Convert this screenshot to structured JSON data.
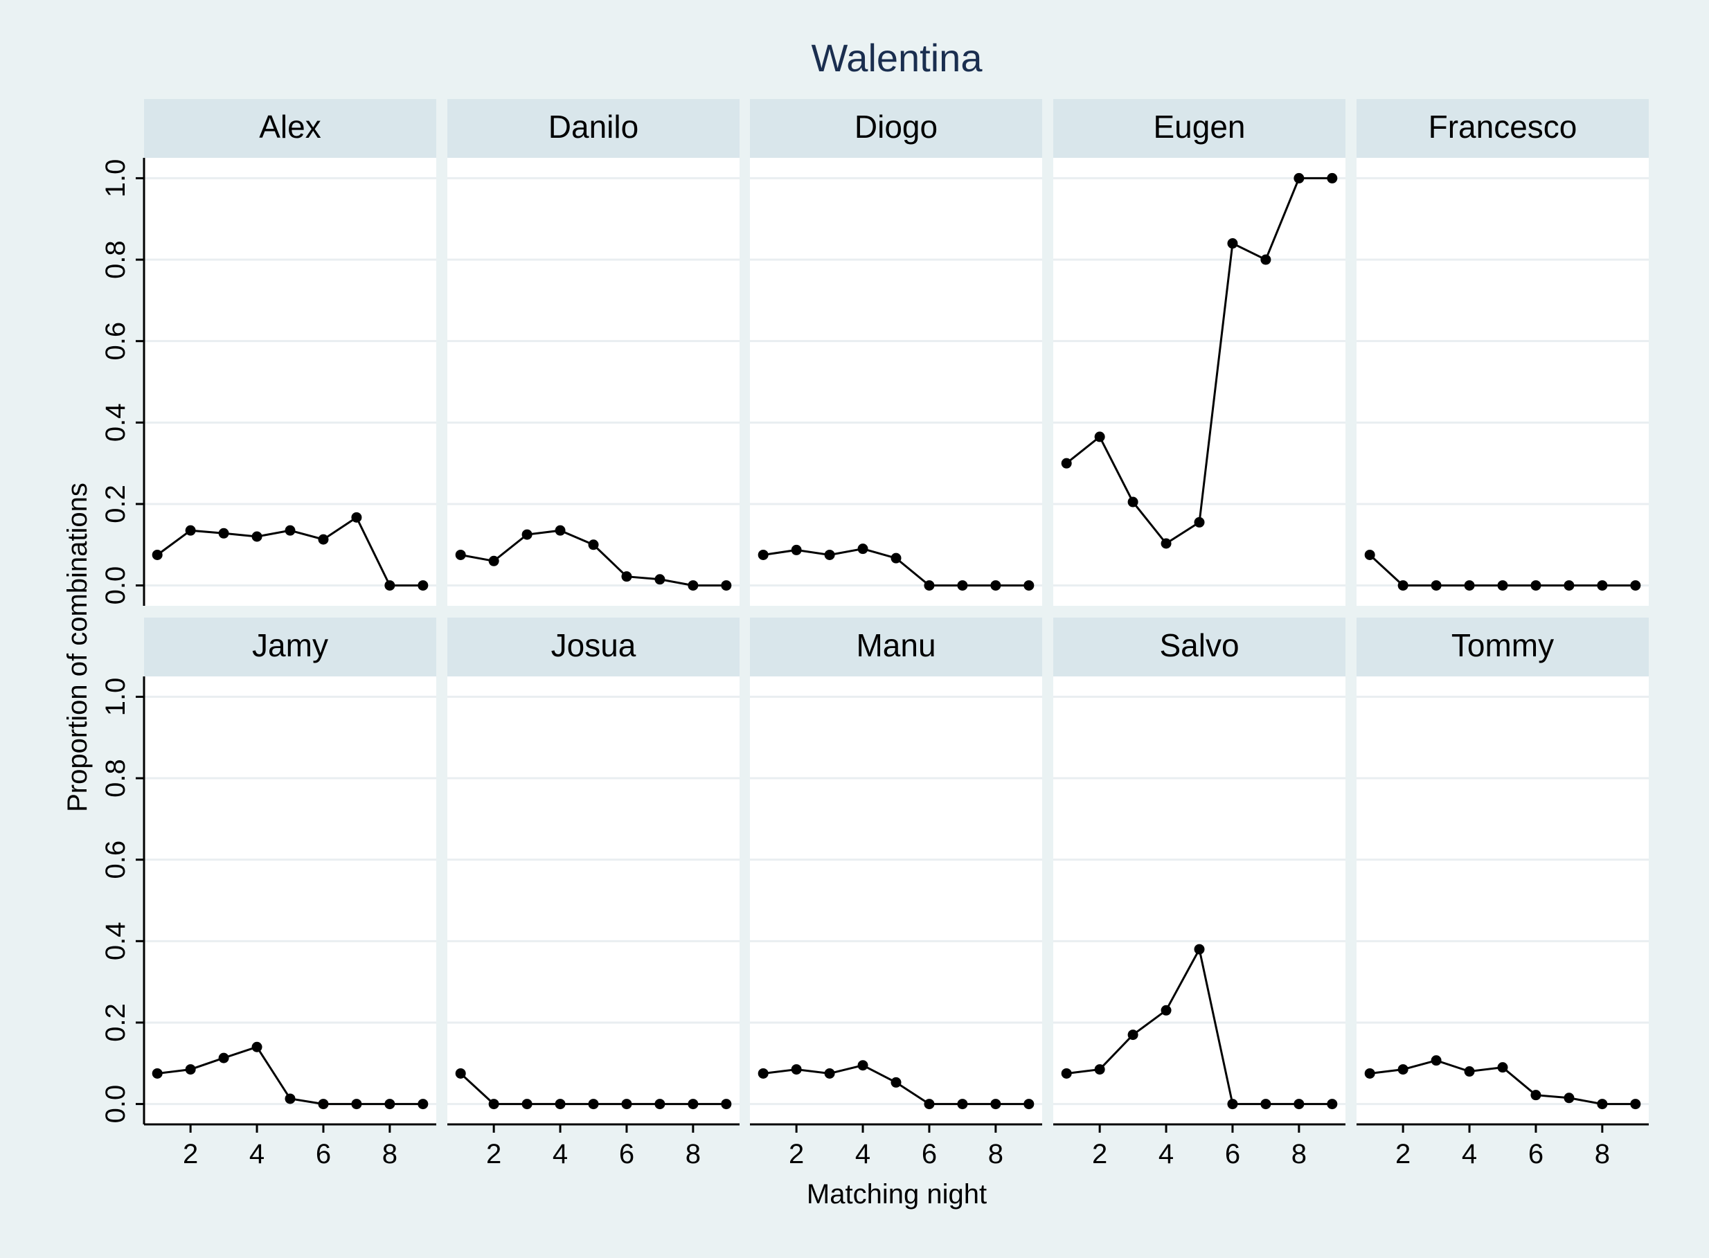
{
  "chart_data": {
    "type": "line",
    "title": "Walentina",
    "xlabel": "Matching night",
    "ylabel": "Proportion of combinations",
    "xlim": [
      0.6,
      9.4
    ],
    "ylim": [
      -0.05,
      1.05
    ],
    "xticks": [
      2,
      4,
      6,
      8
    ],
    "yticks": [
      0.0,
      0.2,
      0.4,
      0.6,
      0.8,
      1.0
    ],
    "ytick_labels": [
      "0.0",
      "0.2",
      "0.4",
      "0.6",
      "0.8",
      "1.0"
    ],
    "x": [
      1,
      2,
      3,
      4,
      5,
      6,
      7,
      8,
      9
    ],
    "grid": true,
    "colors": {
      "background": "#eaf2f3",
      "plot": "#ffffff",
      "strip": "#d9e6eb",
      "line": "#000000",
      "grid": "#e9eef1",
      "title": "#1a2e4f"
    },
    "panels": [
      {
        "name": "Alex",
        "values": [
          0.075,
          0.135,
          0.128,
          0.12,
          0.135,
          0.113,
          0.167,
          0.0,
          0.0
        ]
      },
      {
        "name": "Danilo",
        "values": [
          0.075,
          0.06,
          0.125,
          0.135,
          0.1,
          0.022,
          0.015,
          0.0,
          0.0
        ]
      },
      {
        "name": "Diogo",
        "values": [
          0.075,
          0.087,
          0.075,
          0.09,
          0.067,
          0.0,
          0.0,
          0.0,
          0.0
        ]
      },
      {
        "name": "Eugen",
        "values": [
          0.3,
          0.365,
          0.205,
          0.103,
          0.155,
          0.84,
          0.8,
          1.0,
          1.0
        ]
      },
      {
        "name": "Francesco",
        "values": [
          0.075,
          0.0,
          0.0,
          0.0,
          0.0,
          0.0,
          0.0,
          0.0,
          0.0
        ]
      },
      {
        "name": "Jamy",
        "values": [
          0.075,
          0.085,
          0.113,
          0.14,
          0.013,
          0.0,
          0.0,
          0.0,
          0.0
        ]
      },
      {
        "name": "Josua",
        "values": [
          0.075,
          0.0,
          0.0,
          0.0,
          0.0,
          0.0,
          0.0,
          0.0,
          0.0
        ]
      },
      {
        "name": "Manu",
        "values": [
          0.075,
          0.085,
          0.075,
          0.095,
          0.053,
          0.0,
          0.0,
          0.0,
          0.0
        ]
      },
      {
        "name": "Salvo",
        "values": [
          0.075,
          0.085,
          0.17,
          0.23,
          0.38,
          0.0,
          0.0,
          0.0,
          0.0
        ]
      },
      {
        "name": "Tommy",
        "values": [
          0.075,
          0.085,
          0.107,
          0.08,
          0.09,
          0.022,
          0.015,
          0.0,
          0.0
        ]
      }
    ]
  }
}
